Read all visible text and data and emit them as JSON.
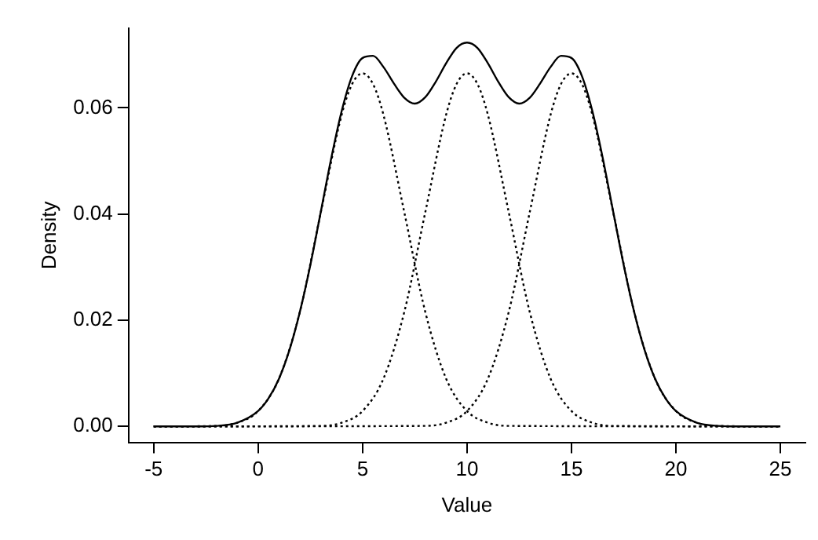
{
  "chart_data": {
    "type": "line",
    "xlabel": "Value",
    "ylabel": "Density",
    "xlim": [
      -6.2,
      26.2
    ],
    "ylim": [
      -0.003,
      0.075
    ],
    "xticks": [
      -5,
      0,
      5,
      10,
      15,
      20,
      25
    ],
    "yticks": [
      {
        "value": 0,
        "label": "0.00"
      },
      0.02,
      0.04,
      0.06
    ],
    "grid": false,
    "legend": false,
    "marker": "none",
    "series": [
      {
        "color": "#000000",
        "line_style": "solid",
        "x": [
          -5,
          -3,
          -2,
          -1,
          0,
          0.5,
          1,
          1.5,
          2,
          2.5,
          3,
          3.5,
          4,
          4.5,
          5,
          5.5,
          6,
          6.5,
          7,
          7.5,
          8,
          8.5,
          9,
          9.5,
          10,
          10.5,
          11,
          11.5,
          12,
          12.5,
          13,
          13.5,
          14,
          14.5,
          15,
          15.5,
          16,
          16.5,
          17,
          17.5,
          18,
          18.5,
          19,
          19.5,
          20,
          21,
          22,
          23,
          25
        ],
        "values": [
          0,
          0,
          0.0001,
          0.0007,
          0.0029,
          0.0053,
          0.009,
          0.0144,
          0.0216,
          0.0304,
          0.0404,
          0.0505,
          0.0594,
          0.066,
          0.0694,
          0.0698,
          0.0677,
          0.0646,
          0.0619,
          0.0608,
          0.062,
          0.0649,
          0.0684,
          0.0713,
          0.0723,
          0.0713,
          0.0684,
          0.0649,
          0.062,
          0.0608,
          0.0619,
          0.0646,
          0.0677,
          0.0698,
          0.0694,
          0.066,
          0.0594,
          0.0505,
          0.0404,
          0.0304,
          0.0216,
          0.0144,
          0.009,
          0.0053,
          0.0029,
          0.0007,
          0.0001,
          0,
          0
        ]
      },
      {
        "color": "#000000",
        "line_style": "dotted",
        "x": [
          -5,
          -2,
          -1,
          0,
          1,
          2,
          3,
          4,
          4.5,
          5,
          5.5,
          6,
          7,
          8,
          9,
          10,
          11,
          12,
          25
        ],
        "values": [
          0,
          0.0001,
          0.0007,
          0.0029,
          0.009,
          0.0216,
          0.0403,
          0.0587,
          0.0645,
          0.0665,
          0.0645,
          0.0587,
          0.0403,
          0.0216,
          0.009,
          0.0029,
          0.0007,
          0.0001,
          0
        ]
      },
      {
        "color": "#000000",
        "line_style": "dotted",
        "x": [
          -5,
          3,
          4,
          5,
          6,
          7,
          8,
          9,
          9.5,
          10,
          10.5,
          11,
          12,
          13,
          14,
          15,
          16,
          17,
          25
        ],
        "values": [
          0,
          0.0001,
          0.0007,
          0.0029,
          0.009,
          0.0216,
          0.0403,
          0.0587,
          0.0645,
          0.0665,
          0.0645,
          0.0587,
          0.0403,
          0.0216,
          0.009,
          0.0029,
          0.0007,
          0.0001,
          0
        ]
      },
      {
        "color": "#000000",
        "line_style": "dotted",
        "x": [
          -5,
          8,
          9,
          10,
          11,
          12,
          13,
          14,
          14.5,
          15,
          15.5,
          16,
          17,
          18,
          19,
          20,
          21,
          22,
          25
        ],
        "values": [
          0,
          0.0001,
          0.0007,
          0.0029,
          0.009,
          0.0216,
          0.0403,
          0.0587,
          0.0645,
          0.0665,
          0.0645,
          0.0587,
          0.0403,
          0.0216,
          0.009,
          0.0029,
          0.0007,
          0.0001,
          0
        ]
      }
    ]
  }
}
